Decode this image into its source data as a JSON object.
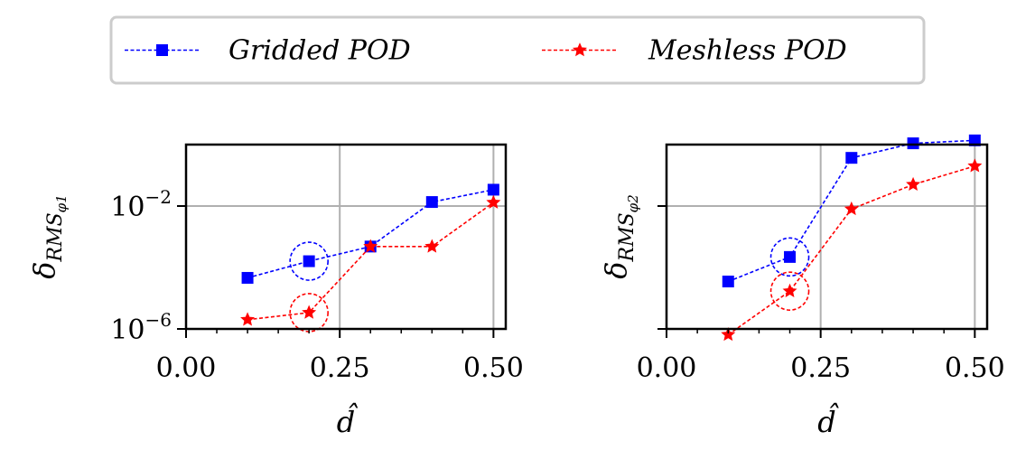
{
  "colors": {
    "gridded": "#0000ff",
    "meshless": "#ff0000",
    "grid": "#b0b0b0",
    "legend_border": "#cccccc"
  },
  "legend": {
    "placement": "top-center",
    "items": [
      {
        "label": "Gridded POD",
        "marker": "square",
        "color": "#0000ff"
      },
      {
        "label": "Meshless POD",
        "marker": "star",
        "color": "#ff0000"
      }
    ]
  },
  "chart_data": [
    {
      "type": "line",
      "yscale": "log",
      "xlabel": "d̂",
      "ylabel": {
        "base": "δ",
        "subscript": "RMS",
        "subsubscript": "φ1"
      },
      "xlim": [
        0,
        0.52
      ],
      "ylim": [
        1e-06,
        1.0
      ],
      "grid": true,
      "xticks": [
        0.0,
        0.25,
        0.5
      ],
      "xtick_labels": [
        "0.00",
        "0.25",
        "0.50"
      ],
      "xminor_ticks": [
        0.05,
        0.1,
        0.15,
        0.2,
        0.3,
        0.35,
        0.4,
        0.45
      ],
      "yticks": [
        1e-06,
        0.01
      ],
      "ytick_labels": [
        {
          "base": "10",
          "exp": "−6"
        },
        {
          "base": "10",
          "exp": "−2"
        }
      ],
      "x": [
        0.1,
        0.2,
        0.3,
        0.4,
        0.5
      ],
      "series": [
        {
          "name": "Gridded POD",
          "values": [
            4.6e-05,
            0.00016,
            0.00048,
            0.0135,
            0.034
          ]
        },
        {
          "name": "Meshless POD",
          "values": [
            2e-06,
            3.4e-06,
            0.00048,
            0.00048,
            0.013
          ]
        }
      ],
      "annotations": [
        {
          "type": "circle",
          "x": 0.2,
          "y": 0.00016,
          "color": "#0000ff"
        },
        {
          "type": "circle",
          "x": 0.2,
          "y": 3.4e-06,
          "color": "#ff0000"
        }
      ]
    },
    {
      "type": "line",
      "yscale": "log",
      "xlabel": "d̂",
      "ylabel": {
        "base": "δ",
        "subscript": "RMS",
        "subsubscript": "φ2"
      },
      "xlim": [
        0,
        0.52
      ],
      "ylim": [
        1e-06,
        1.0
      ],
      "grid": true,
      "xticks": [
        0.0,
        0.25,
        0.5
      ],
      "xtick_labels": [
        "0.00",
        "0.25",
        "0.50"
      ],
      "xminor_ticks": [
        0.05,
        0.1,
        0.15,
        0.2,
        0.3,
        0.35,
        0.4,
        0.45
      ],
      "yticks": [
        1e-06,
        0.01
      ],
      "ytick_labels": [],
      "x": [
        0.1,
        0.2,
        0.3,
        0.4,
        0.5
      ],
      "series": [
        {
          "name": "Gridded POD",
          "values": [
            3.5e-05,
            0.00022,
            0.37,
            1.1,
            1.37
          ]
        },
        {
          "name": "Meshless POD",
          "values": [
            6.5e-07,
            1.7e-05,
            0.008,
            0.05,
            0.2
          ]
        }
      ],
      "annotations": [
        {
          "type": "circle",
          "x": 0.2,
          "y": 0.00022,
          "color": "#0000ff"
        },
        {
          "type": "circle",
          "x": 0.2,
          "y": 1.7e-05,
          "color": "#ff0000"
        }
      ]
    }
  ]
}
